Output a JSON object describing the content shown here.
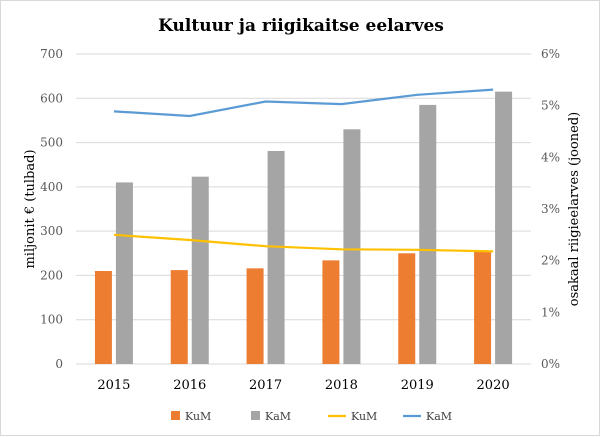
{
  "chart_data": {
    "type": "bar",
    "title": "Kultuur ja riigikaitse eelarves",
    "categories": [
      "2015",
      "2016",
      "2017",
      "2018",
      "2019",
      "2020"
    ],
    "ylabel": "miljonit € (tulbad)",
    "y2label": "osakaal riigieelarves (jooned)",
    "ylim": [
      0,
      700
    ],
    "y2lim": [
      0,
      6
    ],
    "yticks": [
      "0",
      "100",
      "200",
      "300",
      "400",
      "500",
      "600",
      "700"
    ],
    "y2ticks": [
      "0%",
      "1%",
      "2%",
      "3%",
      "4%",
      "5%",
      "6%"
    ],
    "grid": true,
    "legend_position": "bottom",
    "bar_series": [
      {
        "name": "KuM",
        "color": "#ED7D31",
        "values": [
          210,
          212,
          216,
          234,
          250,
          254
        ]
      },
      {
        "name": "KaM",
        "color": "#A5A5A5",
        "values": [
          410,
          423,
          481,
          530,
          585,
          615
        ]
      }
    ],
    "line_series": [
      {
        "name": "KuM",
        "color": "#FFC000",
        "axis": "right",
        "values": [
          2.5,
          2.4,
          2.28,
          2.22,
          2.21,
          2.18
        ]
      },
      {
        "name": "KaM",
        "color": "#5B9BD5",
        "axis": "right",
        "values": [
          4.89,
          4.8,
          5.08,
          5.03,
          5.21,
          5.31
        ]
      }
    ]
  }
}
